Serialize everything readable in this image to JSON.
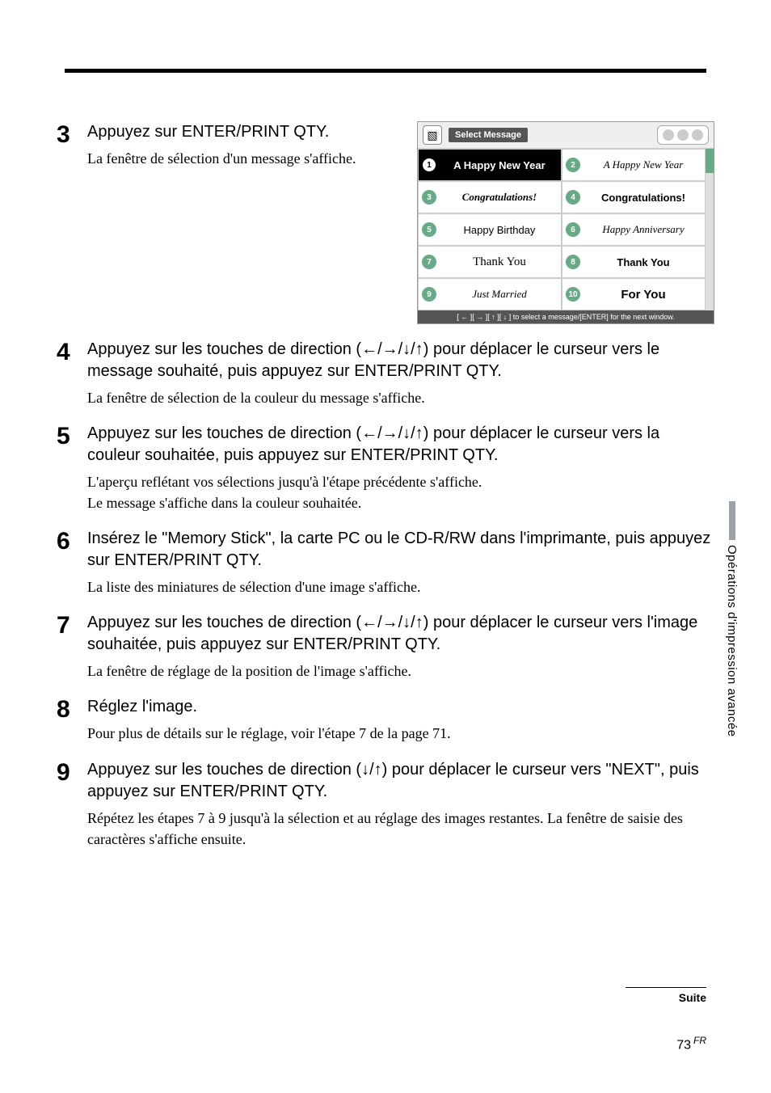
{
  "screenshot": {
    "header_title": "Select Message",
    "items": [
      {
        "n": "1",
        "label": "A Happy New Year",
        "style": "bold",
        "selected": true
      },
      {
        "n": "2",
        "label": "A Happy New Year",
        "style": "script"
      },
      {
        "n": "3",
        "label": "Congratulations!",
        "style": "italic-bold"
      },
      {
        "n": "4",
        "label": "Congratulations!",
        "style": "bold"
      },
      {
        "n": "5",
        "label": "Happy Birthday",
        "style": "plain"
      },
      {
        "n": "6",
        "label": "Happy Anniversary",
        "style": "script"
      },
      {
        "n": "7",
        "label": "Thank You",
        "style": "serif"
      },
      {
        "n": "8",
        "label": "Thank You",
        "style": "bold"
      },
      {
        "n": "9",
        "label": "Just Married",
        "style": "italic"
      },
      {
        "n": "10",
        "label": "For You",
        "style": "bold-large"
      }
    ],
    "footer": "[ ← ][ → ][ ↑ ][ ↓ ] to select a message/[ENTER] for the next window."
  },
  "steps": {
    "s3": {
      "num": "3",
      "title": "Appuyez sur ENTER/PRINT QTY.",
      "desc": "La fenêtre de sélection d'un message s'affiche."
    },
    "s4": {
      "num": "4",
      "title": "Appuyez sur les touches de direction (←/→/↓/↑) pour déplacer le curseur vers le message souhaité, puis appuyez sur ENTER/PRINT QTY.",
      "desc": "La fenêtre de sélection de la couleur du message s'affiche."
    },
    "s5": {
      "num": "5",
      "title": "Appuyez sur les touches de direction (←/→/↓/↑) pour déplacer le curseur vers la couleur souhaitée, puis appuyez sur ENTER/PRINT QTY.",
      "desc": "L'aperçu reflétant vos sélections jusqu'à l'étape précédente s'affiche.\nLe message s'affiche dans la couleur souhaitée."
    },
    "s6": {
      "num": "6",
      "title": "Insérez le \"Memory Stick\", la carte PC ou le CD-R/RW dans l'imprimante, puis appuyez sur ENTER/PRINT QTY.",
      "desc": "La liste des miniatures de sélection d'une image s'affiche."
    },
    "s7": {
      "num": "7",
      "title": "Appuyez sur les touches de direction (←/→/↓/↑) pour déplacer le curseur vers l'image souhaitée, puis appuyez sur ENTER/PRINT QTY.",
      "desc": "La fenêtre de réglage de la position de l'image s'affiche."
    },
    "s8": {
      "num": "8",
      "title": "Réglez l'image.",
      "desc": "Pour plus de détails sur le réglage, voir l'étape 7 de la page 71."
    },
    "s9": {
      "num": "9",
      "title": "Appuyez sur les touches de direction (↓/↑) pour déplacer le curseur vers \"NEXT\", puis appuyez sur ENTER/PRINT QTY.",
      "desc": "Répétez les étapes 7 à 9 jusqu'à la sélection et au réglage des images restantes. La fenêtre de saisie des caractères s'affiche ensuite."
    }
  },
  "sidetab": "Opérations d'impression avancée",
  "suite": "Suite",
  "page_number": "73",
  "page_lang": "FR"
}
